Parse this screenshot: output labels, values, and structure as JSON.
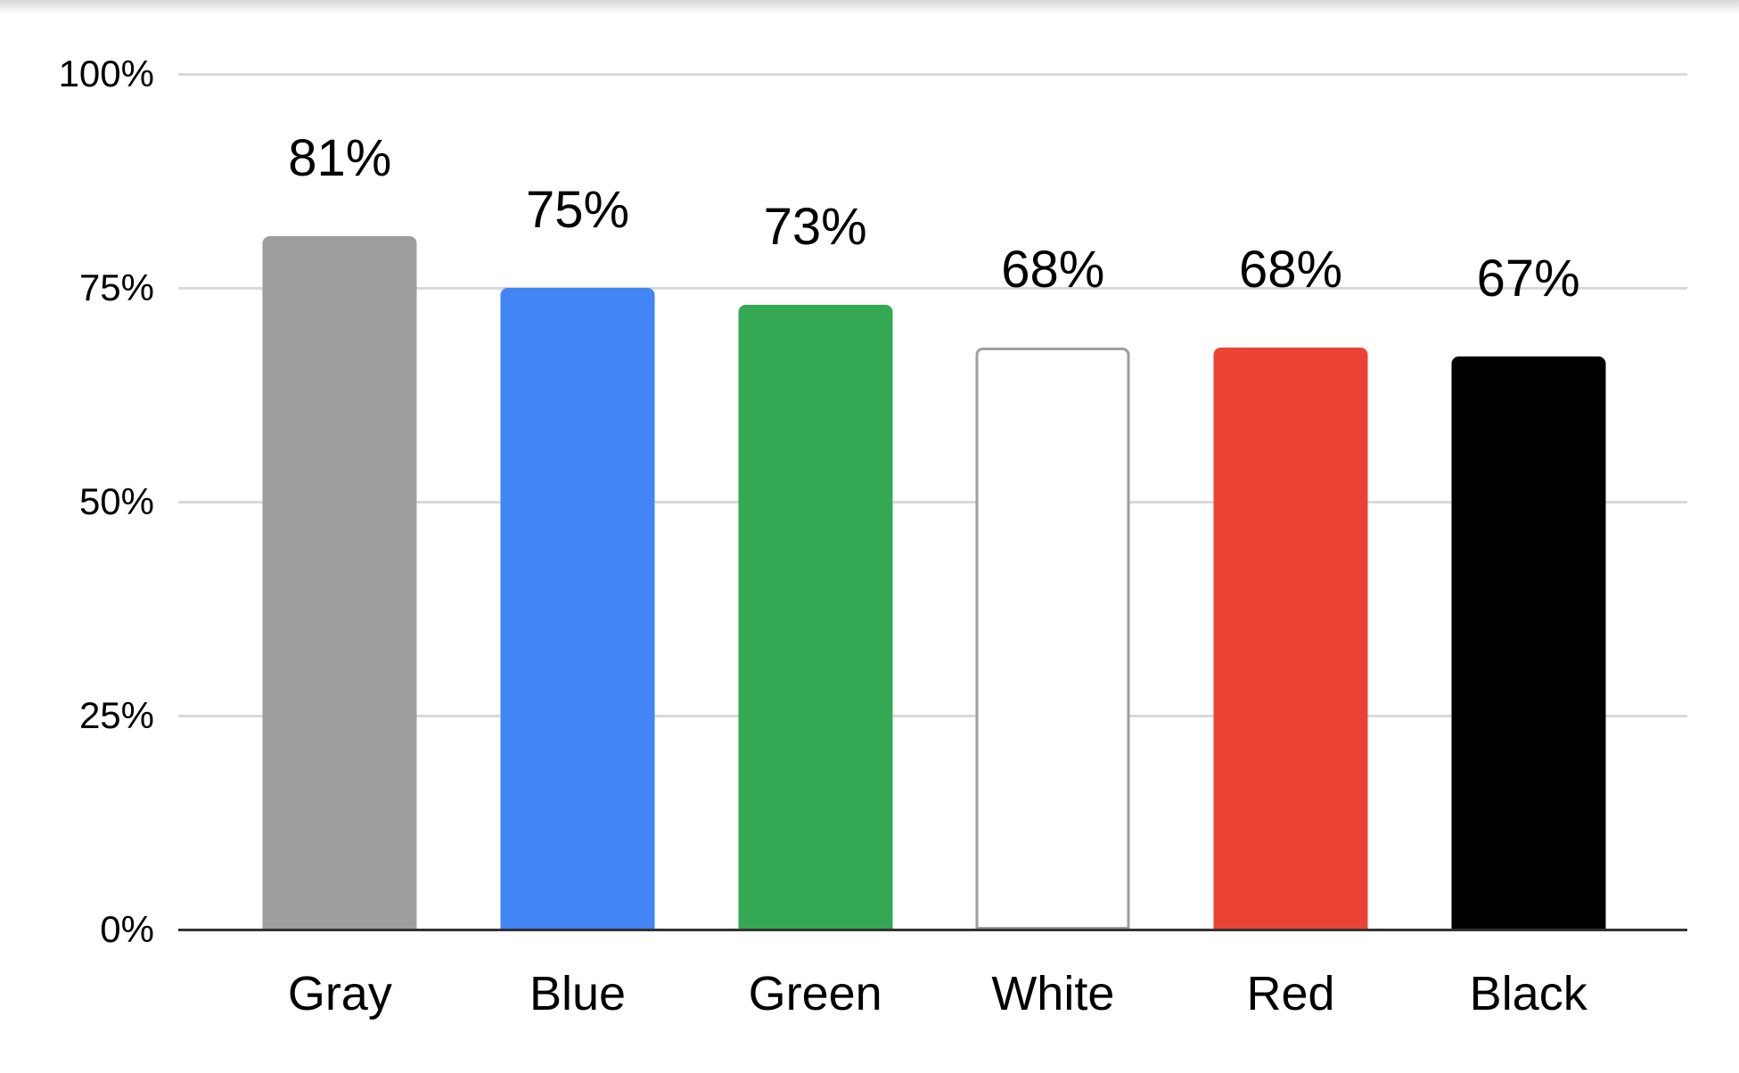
{
  "chart_data": {
    "type": "bar",
    "title": "",
    "xlabel": "",
    "ylabel": "",
    "categories": [
      "Gray",
      "Blue",
      "Green",
      "White",
      "Red",
      "Black"
    ],
    "values": [
      81,
      75,
      73,
      68,
      68,
      67
    ],
    "value_labels": [
      "81%",
      "75%",
      "73%",
      "68%",
      "68%",
      "67%"
    ],
    "bar_colors": [
      "#9e9e9e",
      "#4285f4",
      "#34a853",
      "#ffffff",
      "#ea4335",
      "#000000"
    ],
    "bar_border_colors": [
      null,
      null,
      null,
      "#9e9e9e",
      null,
      null
    ],
    "y_axis": {
      "min": 0,
      "max": 100,
      "tick_labels": [
        "100%",
        "75%",
        "50%",
        "25%",
        "0%"
      ],
      "tick_values": [
        100,
        75,
        50,
        25,
        0
      ]
    },
    "grid": true,
    "legend_position": "none"
  },
  "colors": {
    "background": "#ffffff",
    "gridline": "#d9d9d9",
    "axis_line": "#333333",
    "text": "#000000"
  }
}
